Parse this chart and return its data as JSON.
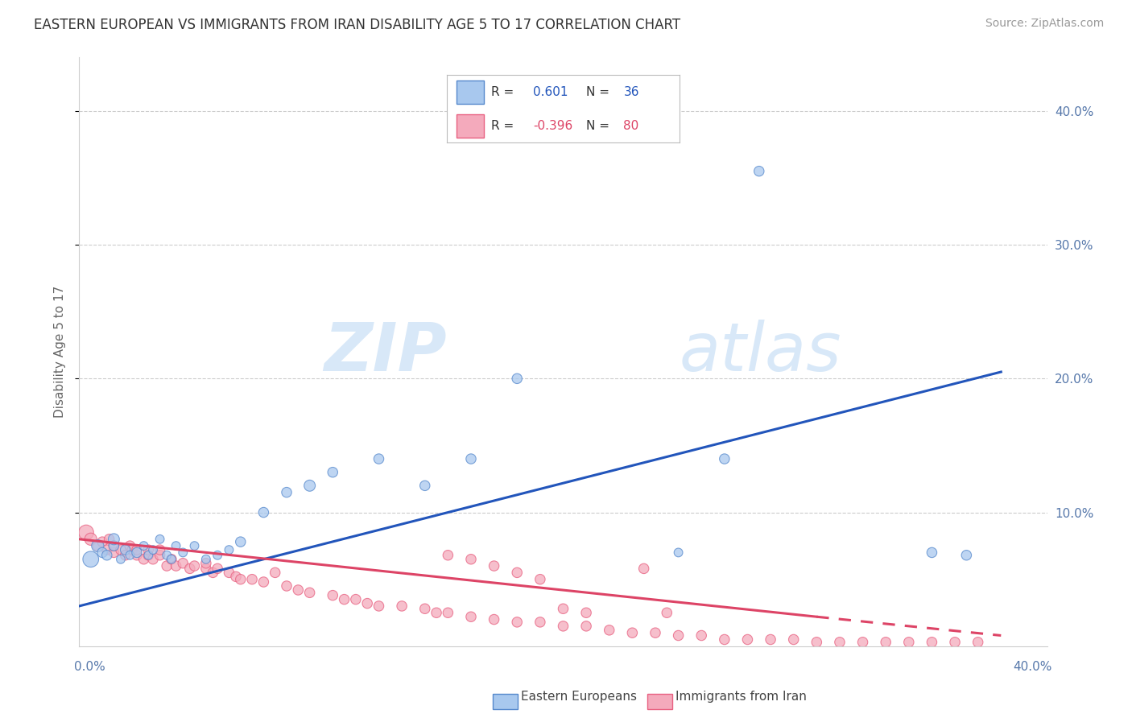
{
  "title": "EASTERN EUROPEAN VS IMMIGRANTS FROM IRAN DISABILITY AGE 5 TO 17 CORRELATION CHART",
  "source": "Source: ZipAtlas.com",
  "ylabel": "Disability Age 5 to 17",
  "xlim": [
    0.0,
    0.42
  ],
  "ylim": [
    0.0,
    0.44
  ],
  "yticks": [
    0.1,
    0.2,
    0.3,
    0.4
  ],
  "ytick_labels": [
    "10.0%",
    "20.0%",
    "30.0%",
    "40.0%"
  ],
  "blue_color": "#A8C8EE",
  "pink_color": "#F4AABC",
  "blue_edge_color": "#5588CC",
  "pink_edge_color": "#E86080",
  "blue_line_color": "#2255BB",
  "pink_line_color": "#DD4466",
  "title_color": "#333333",
  "source_color": "#999999",
  "axis_label_color": "#5577AA",
  "watermark_color": "#D8E8F8",
  "grid_color": "#CCCCCC",
  "legend_blue_r": "0.601",
  "legend_blue_n": "36",
  "legend_pink_r": "-0.396",
  "legend_pink_n": "80",
  "blue_scatter_x": [
    0.005,
    0.008,
    0.01,
    0.012,
    0.015,
    0.015,
    0.018,
    0.02,
    0.022,
    0.025,
    0.028,
    0.03,
    0.032,
    0.035,
    0.038,
    0.04,
    0.042,
    0.045,
    0.05,
    0.055,
    0.06,
    0.065,
    0.07,
    0.08,
    0.09,
    0.1,
    0.11,
    0.13,
    0.15,
    0.17,
    0.19,
    0.26,
    0.28,
    0.295,
    0.37,
    0.385
  ],
  "blue_scatter_y": [
    0.065,
    0.075,
    0.07,
    0.068,
    0.075,
    0.08,
    0.065,
    0.072,
    0.068,
    0.07,
    0.075,
    0.068,
    0.072,
    0.08,
    0.068,
    0.065,
    0.075,
    0.07,
    0.075,
    0.065,
    0.068,
    0.072,
    0.078,
    0.1,
    0.115,
    0.12,
    0.13,
    0.14,
    0.12,
    0.14,
    0.2,
    0.07,
    0.14,
    0.355,
    0.07,
    0.068
  ],
  "blue_scatter_sizes": [
    200,
    120,
    80,
    80,
    80,
    100,
    60,
    80,
    60,
    80,
    60,
    60,
    60,
    60,
    60,
    60,
    60,
    60,
    60,
    60,
    60,
    60,
    80,
    80,
    80,
    100,
    80,
    80,
    80,
    80,
    80,
    60,
    80,
    80,
    80,
    80
  ],
  "pink_scatter_x": [
    0.003,
    0.005,
    0.008,
    0.01,
    0.012,
    0.013,
    0.015,
    0.015,
    0.018,
    0.02,
    0.022,
    0.023,
    0.025,
    0.025,
    0.028,
    0.03,
    0.03,
    0.032,
    0.035,
    0.035,
    0.038,
    0.04,
    0.042,
    0.045,
    0.048,
    0.05,
    0.055,
    0.055,
    0.058,
    0.06,
    0.065,
    0.068,
    0.07,
    0.075,
    0.08,
    0.085,
    0.09,
    0.095,
    0.1,
    0.11,
    0.115,
    0.12,
    0.125,
    0.13,
    0.14,
    0.15,
    0.155,
    0.16,
    0.17,
    0.18,
    0.19,
    0.2,
    0.21,
    0.22,
    0.23,
    0.24,
    0.25,
    0.26,
    0.27,
    0.28,
    0.29,
    0.3,
    0.31,
    0.32,
    0.33,
    0.34,
    0.35,
    0.36,
    0.37,
    0.38,
    0.39,
    0.245,
    0.255,
    0.16,
    0.17,
    0.18,
    0.19,
    0.2,
    0.21,
    0.22
  ],
  "pink_scatter_y": [
    0.085,
    0.08,
    0.075,
    0.078,
    0.072,
    0.08,
    0.07,
    0.075,
    0.072,
    0.068,
    0.075,
    0.072,
    0.068,
    0.072,
    0.065,
    0.068,
    0.072,
    0.065,
    0.068,
    0.072,
    0.06,
    0.065,
    0.06,
    0.062,
    0.058,
    0.06,
    0.058,
    0.062,
    0.055,
    0.058,
    0.055,
    0.052,
    0.05,
    0.05,
    0.048,
    0.055,
    0.045,
    0.042,
    0.04,
    0.038,
    0.035,
    0.035,
    0.032,
    0.03,
    0.03,
    0.028,
    0.025,
    0.025,
    0.022,
    0.02,
    0.018,
    0.018,
    0.015,
    0.015,
    0.012,
    0.01,
    0.01,
    0.008,
    0.008,
    0.005,
    0.005,
    0.005,
    0.005,
    0.003,
    0.003,
    0.003,
    0.003,
    0.003,
    0.003,
    0.003,
    0.003,
    0.058,
    0.025,
    0.068,
    0.065,
    0.06,
    0.055,
    0.05,
    0.028,
    0.025
  ],
  "pink_scatter_sizes": [
    180,
    120,
    80,
    80,
    80,
    80,
    80,
    80,
    80,
    80,
    80,
    80,
    80,
    80,
    80,
    80,
    80,
    80,
    80,
    80,
    80,
    80,
    80,
    80,
    80,
    80,
    80,
    80,
    80,
    80,
    80,
    80,
    80,
    80,
    80,
    80,
    80,
    80,
    80,
    80,
    80,
    80,
    80,
    80,
    80,
    80,
    80,
    80,
    80,
    80,
    80,
    80,
    80,
    80,
    80,
    80,
    80,
    80,
    80,
    80,
    80,
    80,
    80,
    80,
    80,
    80,
    80,
    80,
    80,
    80,
    80,
    80,
    80,
    80,
    80,
    80,
    80,
    80,
    80,
    80
  ],
  "blue_line_x0": 0.0,
  "blue_line_y0": 0.03,
  "blue_line_x1": 0.4,
  "blue_line_y1": 0.205,
  "pink_line_x0": 0.0,
  "pink_line_y0": 0.08,
  "pink_line_x1_solid": 0.32,
  "pink_line_y1_solid": 0.022,
  "pink_line_x1_dash": 0.4,
  "pink_line_y1_dash": 0.008
}
